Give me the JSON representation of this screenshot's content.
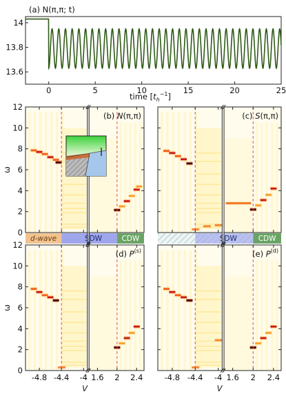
{
  "colors": {
    "line": "#2f5a18",
    "dashed": "#e2504a",
    "dwave": "#f2c38f",
    "sdw": "#9fa6ec",
    "cdw": "#6aa464",
    "hatch": "#b9d1d4"
  },
  "chart_data": [
    {
      "type": "line",
      "panel": "(a)",
      "title": "(a) N(π,π; t)",
      "xlabel": "time [t_h^-1]",
      "xlabel_main": "time [",
      "xlabel_t": "t",
      "xlabel_sub": "h",
      "xlabel_sup": "−1",
      "xlabel_close": "]",
      "xlim": [
        -2.5,
        25
      ],
      "ylim": [
        13.5,
        14.05
      ],
      "xticks": [
        "0",
        "5",
        "10",
        "15",
        "20",
        "25"
      ],
      "yticks": [
        "14",
        "13.8",
        "13.6"
      ],
      "series": [
        {
          "initial_value": 14.03,
          "quench_time": 0,
          "oscillation": {
            "mean": 13.79,
            "amplitude": 0.16,
            "period": 0.72
          }
        }
      ]
    },
    {
      "type": "heatmap",
      "panel": "(b)",
      "label": "(b) N(π,π)",
      "ylabel": "ω",
      "xlabel": "V",
      "ylim": [
        0,
        12
      ],
      "yticks": [
        "0",
        "2",
        "4",
        "6",
        "8",
        "10",
        "12"
      ],
      "xticks": [
        "-4.8",
        "-4.4",
        "-4",
        "1.6",
        "2",
        "2.4"
      ],
      "dashed_lines_V": [
        -4.4,
        2.0
      ],
      "phase_labels": [
        "d-wave",
        "SDW",
        "CDW"
      ],
      "peaks_dwave": [
        [
          -4.9,
          7.85
        ],
        [
          -4.8,
          7.7
        ],
        [
          -4.7,
          7.5
        ],
        [
          -4.6,
          7.2
        ],
        [
          -4.5,
          6.95
        ],
        [
          -4.45,
          6.7
        ]
      ],
      "peaks_cdw": [
        [
          2.0,
          2.15
        ],
        [
          2.1,
          2.5
        ],
        [
          2.2,
          3.0
        ],
        [
          2.3,
          3.5
        ],
        [
          2.4,
          4.1
        ],
        [
          2.45,
          4.4
        ]
      ]
    },
    {
      "type": "heatmap",
      "panel": "(c)",
      "label": "(c) S(π,π)",
      "ylim": [
        0,
        12
      ],
      "xticks": [
        "-4.8",
        "-4.4",
        "-4",
        "1.6",
        "2",
        "2.4"
      ],
      "dashed_lines_V": [
        -4.4,
        2.0
      ],
      "phase_labels": [
        "SDW",
        "CDW"
      ],
      "peaks_dwave": [
        [
          -4.9,
          7.8
        ],
        [
          -4.8,
          7.6
        ],
        [
          -4.7,
          7.3
        ],
        [
          -4.6,
          7.0
        ],
        [
          -4.5,
          6.6
        ]
      ],
      "peaks_sdw": [
        [
          -4.4,
          0.3
        ],
        [
          -4.2,
          0.6
        ],
        [
          -4.0,
          0.7
        ],
        [
          1.6,
          2.8
        ],
        [
          1.8,
          2.8
        ]
      ],
      "peaks_cdw": [
        [
          2.0,
          2.2
        ],
        [
          2.1,
          2.6
        ],
        [
          2.2,
          3.1
        ],
        [
          2.3,
          3.6
        ],
        [
          2.4,
          4.2
        ]
      ]
    },
    {
      "type": "heatmap",
      "panel": "(d)",
      "label": "(d) P^(s)",
      "label_main": "(d) P",
      "label_sup": "(s)",
      "ylabel": "ω",
      "xlabel": "V",
      "ylim": [
        0,
        12
      ],
      "yticks": [
        "0",
        "2",
        "4",
        "6",
        "8",
        "10",
        "12"
      ],
      "xticks": [
        "-4.8",
        "-4.4",
        "-4",
        "1.6",
        "2",
        "2.4"
      ],
      "dashed_lines_V": [
        -4.4,
        2.0
      ],
      "peaks_dwave": [
        [
          -4.9,
          7.8
        ],
        [
          -4.8,
          7.5
        ],
        [
          -4.7,
          7.2
        ],
        [
          -4.6,
          7.0
        ],
        [
          -4.5,
          6.7
        ]
      ],
      "peaks_sdw": [
        [
          -4.4,
          0.3
        ]
      ],
      "peaks_cdw": [
        [
          2.0,
          2.2
        ],
        [
          2.1,
          2.6
        ],
        [
          2.2,
          3.1
        ],
        [
          2.3,
          3.6
        ],
        [
          2.4,
          4.2
        ]
      ]
    },
    {
      "type": "heatmap",
      "panel": "(e)",
      "label": "(e) P^(d)",
      "label_main": "(e) P",
      "label_sup": "(d)",
      "xlabel": "V",
      "ylim": [
        0,
        12
      ],
      "xticks": [
        "-4.8",
        "-4.4",
        "-4",
        "1.6",
        "2",
        "2.4"
      ],
      "dashed_lines_V": [
        -4.4,
        2.0
      ],
      "peaks_dwave": [
        [
          -4.9,
          7.8
        ],
        [
          -4.8,
          7.5
        ],
        [
          -4.7,
          7.2
        ],
        [
          -4.6,
          7.0
        ],
        [
          -4.5,
          6.7
        ]
      ],
      "peaks_sdw": [
        [
          -4.4,
          0.3
        ],
        [
          -4.0,
          2.9
        ]
      ],
      "peaks_cdw": [
        [
          2.0,
          2.2
        ],
        [
          2.1,
          2.6
        ],
        [
          2.2,
          3.1
        ],
        [
          2.3,
          3.6
        ],
        [
          2.4,
          4.2
        ]
      ]
    }
  ]
}
